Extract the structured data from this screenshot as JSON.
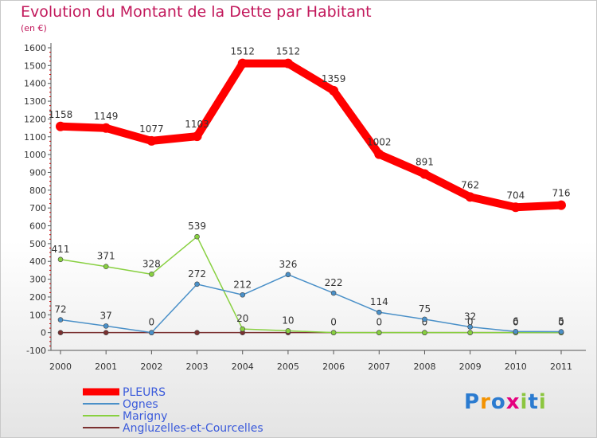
{
  "title": "Evolution du Montant de la Dette par Habitant",
  "subtitle": "(en €)",
  "logo": {
    "text": "Proxiti",
    "letters": [
      "P",
      "r",
      "o",
      "x",
      "i",
      "t",
      "i"
    ],
    "colors": [
      "#2b7bd0",
      "#f39200",
      "#2b7bd0",
      "#e5007e",
      "#8cc63f",
      "#2b7bd0",
      "#8cc63f"
    ]
  },
  "chart_data": {
    "type": "line",
    "x": [
      "2000",
      "2001",
      "2002",
      "2003",
      "2004",
      "2005",
      "2006",
      "2007",
      "2008",
      "2009",
      "2010",
      "2011"
    ],
    "ylim": [
      -100,
      1600
    ],
    "yticks": [
      "-100",
      "0",
      "100",
      "200",
      "300",
      "400",
      "500",
      "600",
      "700",
      "800",
      "900",
      "1000",
      "1100",
      "1200",
      "1300",
      "1400",
      "1500",
      "1600"
    ],
    "grid": false,
    "legend_position": "bottom-left",
    "series": [
      {
        "name": "PLEURS",
        "color": "#ff0000",
        "values": [
          1158,
          1149,
          1077,
          1103,
          1512,
          1512,
          1359,
          1002,
          891,
          762,
          704,
          716
        ],
        "labels": [
          "1158",
          "1149",
          "1077",
          "1103",
          "1512",
          "1512",
          "1359",
          "1002",
          "891",
          "762",
          "704",
          "716"
        ]
      },
      {
        "name": "Ognes",
        "color": "#4a90c8",
        "values": [
          72,
          37,
          0,
          272,
          212,
          326,
          222,
          114,
          75,
          32,
          6,
          5
        ],
        "labels": [
          "72",
          "37",
          "0",
          "272",
          "212",
          "326",
          "222",
          "114",
          "75",
          "32",
          "6",
          "5"
        ]
      },
      {
        "name": "Marigny",
        "color": "#88d040",
        "values": [
          411,
          371,
          328,
          539,
          20,
          10,
          0,
          0,
          0,
          0,
          0,
          0
        ],
        "labels": [
          "411",
          "371",
          "328",
          "539",
          "20",
          "10",
          "0",
          "0",
          "0",
          "0",
          "0",
          "0"
        ]
      },
      {
        "name": "Angluzelles-et-Courcelles",
        "color": "#7a3030",
        "values": [
          0,
          0,
          0,
          0,
          0,
          0,
          0,
          0,
          0,
          0,
          0,
          0
        ],
        "labels": [
          "0",
          "0",
          "0",
          "0",
          "0",
          "0",
          "0",
          "0",
          "0",
          "0",
          "0",
          "0"
        ]
      }
    ]
  }
}
